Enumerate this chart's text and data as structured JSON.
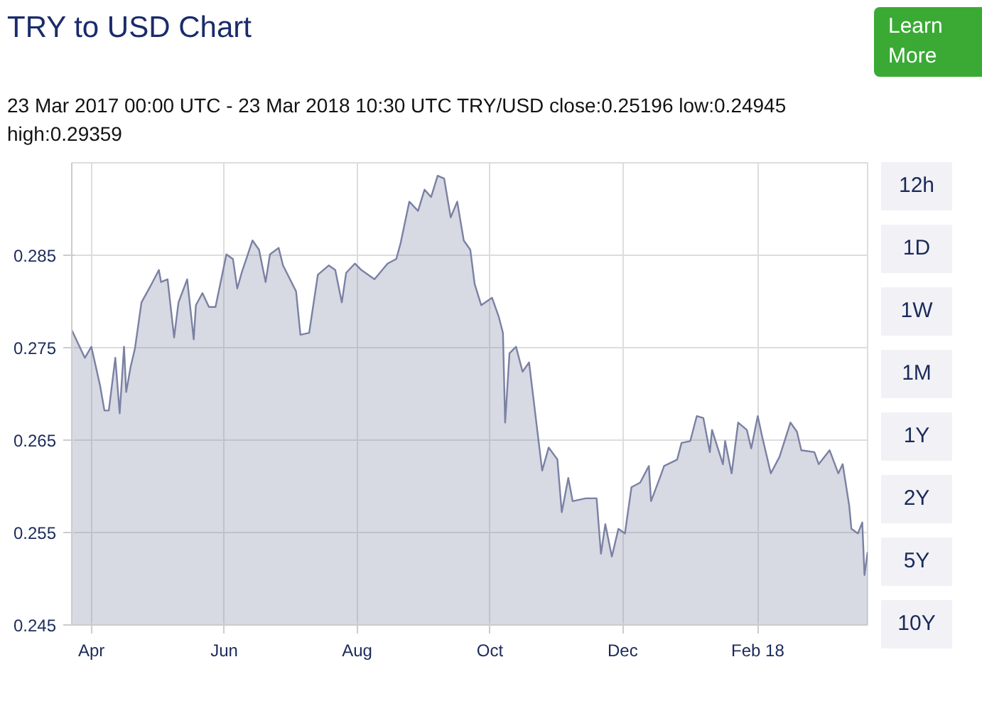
{
  "chart_data": {
    "type": "area",
    "title": "TRY to USD Chart",
    "subtitle": "23 Mar 2017 00:00 UTC - 23 Mar 2018 10:30 UTC   TRY/USD close:0.25196 low:0.24945 high:0.29359",
    "annotations": [
      "Learn More",
      "12h",
      "1D",
      "1W",
      "1M",
      "1Y",
      "2Y",
      "5Y",
      "10Y"
    ],
    "x": [
      "2017-03-23",
      "2017-03-27",
      "2017-03-29",
      "2017-04-01",
      "2017-04-05",
      "2017-04-07",
      "2017-04-09",
      "2017-04-12",
      "2017-04-14",
      "2017-04-16",
      "2017-04-17",
      "2017-04-19",
      "2017-04-21",
      "2017-04-24",
      "2017-04-28",
      "2017-05-02",
      "2017-05-03",
      "2017-05-06",
      "2017-05-09",
      "2017-05-11",
      "2017-05-15",
      "2017-05-18",
      "2017-05-19",
      "2017-05-22",
      "2017-05-25",
      "2017-05-28",
      "2017-06-02",
      "2017-06-05",
      "2017-06-07",
      "2017-06-09",
      "2017-06-14",
      "2017-06-17",
      "2017-06-20",
      "2017-06-22",
      "2017-06-26",
      "2017-06-28",
      "2017-07-04",
      "2017-07-06",
      "2017-07-10",
      "2017-07-14",
      "2017-07-19",
      "2017-07-22",
      "2017-07-25",
      "2017-07-27",
      "2017-07-31",
      "2017-08-03",
      "2017-08-09",
      "2017-08-15",
      "2017-08-19",
      "2017-08-21",
      "2017-08-25",
      "2017-08-29",
      "2017-09-01",
      "2017-09-04",
      "2017-09-07",
      "2017-09-10",
      "2017-09-13",
      "2017-09-16",
      "2017-09-19",
      "2017-09-22",
      "2017-09-24",
      "2017-09-27",
      "2017-10-02",
      "2017-10-05",
      "2017-10-07",
      "2017-10-08",
      "2017-10-10",
      "2017-10-13",
      "2017-10-16",
      "2017-10-19",
      "2017-10-25",
      "2017-10-28",
      "2017-11-01",
      "2017-11-03",
      "2017-11-06",
      "2017-11-08",
      "2017-11-14",
      "2017-11-19",
      "2017-11-21",
      "2017-11-23",
      "2017-11-26",
      "2017-11-29",
      "2017-12-02",
      "2017-12-05",
      "2017-12-09",
      "2017-12-13",
      "2017-12-14",
      "2017-12-18",
      "2017-12-20",
      "2017-12-26",
      "2017-12-28",
      "2018-01-01",
      "2018-01-04",
      "2018-01-07",
      "2018-01-10",
      "2018-01-11",
      "2018-01-16",
      "2018-01-17",
      "2018-01-20",
      "2018-01-23",
      "2018-01-27",
      "2018-01-29",
      "2018-02-01",
      "2018-02-03",
      "2018-02-07",
      "2018-02-11",
      "2018-02-16",
      "2018-02-19",
      "2018-02-21",
      "2018-02-27",
      "2018-03-01",
      "2018-03-06",
      "2018-03-10",
      "2018-03-12",
      "2018-03-15",
      "2018-03-16",
      "2018-03-19",
      "2018-03-21",
      "2018-03-22",
      "2018-03-23T10:30"
    ],
    "series": [
      {
        "color": "#7a81a3",
        "values": [
          0.2769,
          0.2749,
          0.2739,
          0.2751,
          0.2709,
          0.2682,
          0.2682,
          0.2739,
          0.2679,
          0.2751,
          0.2702,
          0.2729,
          0.2749,
          0.2799,
          0.2816,
          0.2834,
          0.2821,
          0.2824,
          0.2761,
          0.2799,
          0.2824,
          0.2759,
          0.2796,
          0.2809,
          0.2794,
          0.2794,
          0.2851,
          0.2846,
          0.2814,
          0.2831,
          0.2866,
          0.2856,
          0.2821,
          0.2851,
          0.2858,
          0.2839,
          0.2811,
          0.2764,
          0.2766,
          0.2829,
          0.2839,
          0.2834,
          0.2799,
          0.2831,
          0.2841,
          0.2834,
          0.2824,
          0.2841,
          0.2846,
          0.2863,
          0.2908,
          0.2898,
          0.2921,
          0.2913,
          0.2936,
          0.2933,
          0.2891,
          0.2908,
          0.2866,
          0.2856,
          0.2819,
          0.2796,
          0.2804,
          0.2784,
          0.2766,
          0.2669,
          0.2744,
          0.2751,
          0.2724,
          0.2734,
          0.2617,
          0.2642,
          0.2629,
          0.2572,
          0.2609,
          0.2584,
          0.2587,
          0.2587,
          0.2527,
          0.2559,
          0.2524,
          0.2554,
          0.2549,
          0.2599,
          0.2604,
          0.2622,
          0.2584,
          0.2609,
          0.2622,
          0.2629,
          0.2647,
          0.2649,
          0.2676,
          0.2674,
          0.2637,
          0.2661,
          0.2624,
          0.2649,
          0.2614,
          0.2669,
          0.2661,
          0.2641,
          0.2676,
          0.2654,
          0.2614,
          0.2632,
          0.2669,
          0.2659,
          0.2639,
          0.2637,
          0.2624,
          0.2639,
          0.2614,
          0.2624,
          0.2579,
          0.2554,
          0.2549,
          0.2561,
          0.2504,
          0.2529
        ]
      }
    ],
    "xlim": [
      "2017-03-23",
      "2018-03-23T10:30"
    ],
    "xticks": [
      {
        "value": "2017-04-01",
        "label": "Apr"
      },
      {
        "value": "2017-06-01",
        "label": "Jun"
      },
      {
        "value": "2017-08-01",
        "label": "Aug"
      },
      {
        "value": "2017-10-01",
        "label": "Oct"
      },
      {
        "value": "2017-12-01",
        "label": "Dec"
      },
      {
        "value": "2018-02-01",
        "label": "Feb 18"
      }
    ],
    "ylim": [
      0.245,
      0.295
    ],
    "yticks": [
      0.245,
      0.255,
      0.265,
      0.275,
      0.285
    ],
    "grid": true
  }
}
